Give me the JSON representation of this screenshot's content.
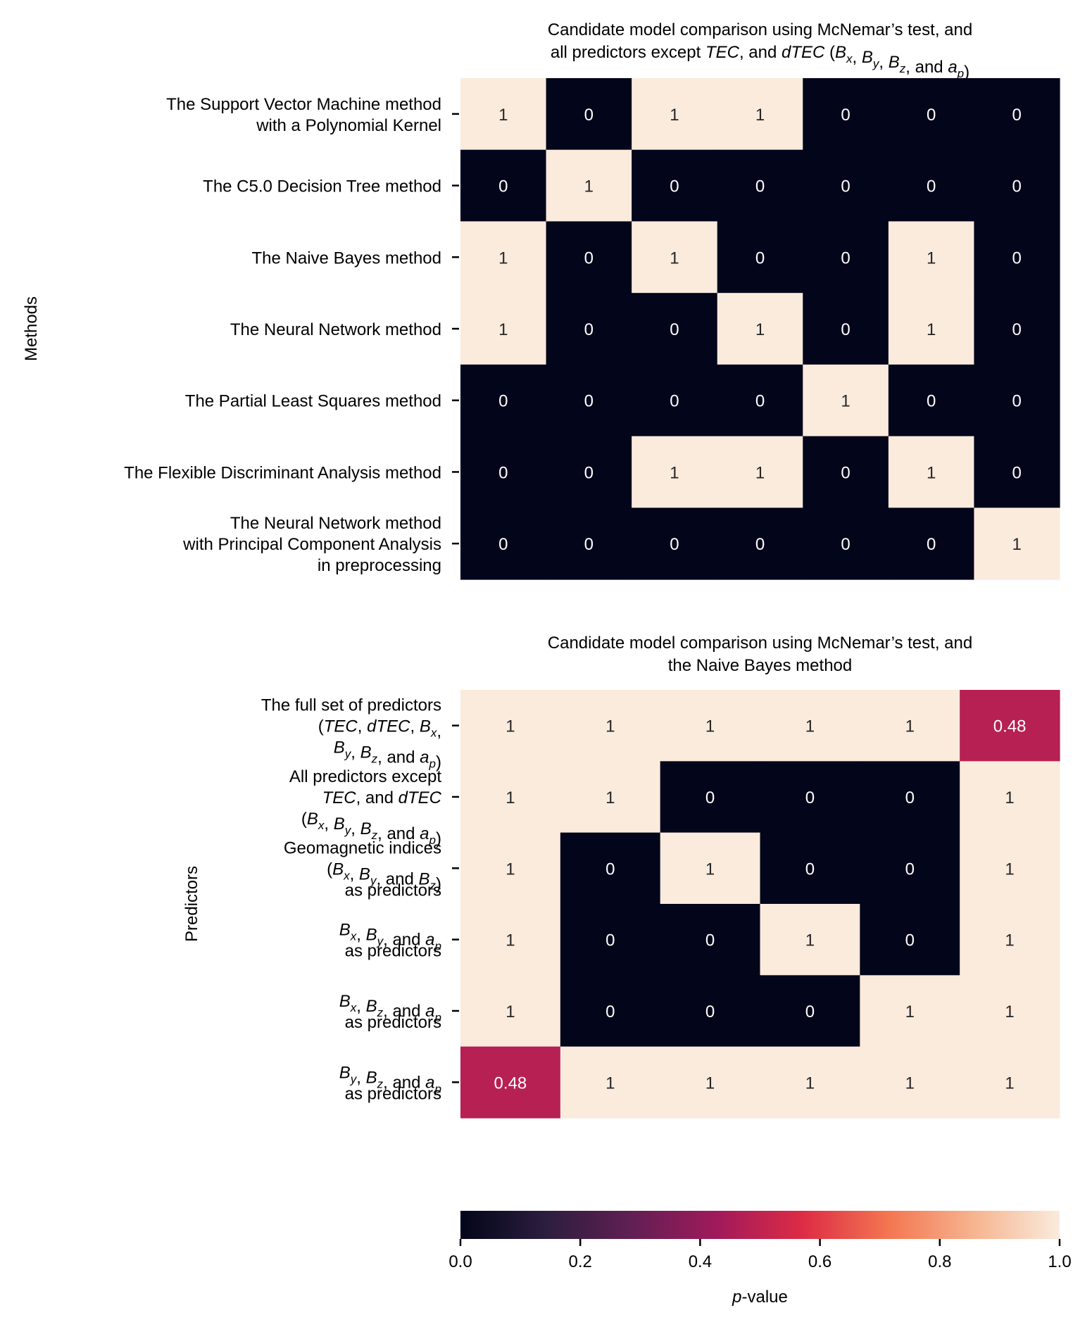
{
  "chart_data": [
    {
      "type": "heatmap",
      "title_lines": [
        "Candidate model comparison using McNemar’s test, and",
        "all predictors except TEC, and dTEC (B_x, B_y, B_z, and a_p)"
      ],
      "ylabel": "Methods",
      "row_labels": [
        [
          "The Support Vector Machine method",
          "with a Polynomial Kernel"
        ],
        [
          "The C5.0 Decision Tree method"
        ],
        [
          "The Naive Bayes method"
        ],
        [
          "The Neural Network method"
        ],
        [
          "The Partial Least Squares method"
        ],
        [
          "The Flexible Discriminant Analysis method"
        ],
        [
          "The Neural Network method",
          "with Principal Component Analysis",
          "in preprocessing"
        ]
      ],
      "matrix": [
        [
          1,
          0,
          1,
          1,
          0,
          0,
          0
        ],
        [
          0,
          1,
          0,
          0,
          0,
          0,
          0
        ],
        [
          1,
          0,
          1,
          0,
          0,
          1,
          0
        ],
        [
          1,
          0,
          0,
          1,
          0,
          1,
          0
        ],
        [
          0,
          0,
          0,
          0,
          1,
          0,
          0
        ],
        [
          0,
          0,
          1,
          1,
          0,
          1,
          0
        ],
        [
          0,
          0,
          0,
          0,
          0,
          0,
          1
        ]
      ],
      "annotations": [
        [
          "1",
          "0",
          "1",
          "1",
          "0",
          "0",
          "0"
        ],
        [
          "0",
          "1",
          "0",
          "0",
          "0",
          "0",
          "0"
        ],
        [
          "1",
          "0",
          "1",
          "0",
          "0",
          "1",
          "0"
        ],
        [
          "1",
          "0",
          "0",
          "1",
          "0",
          "1",
          "0"
        ],
        [
          "0",
          "0",
          "0",
          "0",
          "1",
          "0",
          "0"
        ],
        [
          "0",
          "0",
          "1",
          "1",
          "0",
          "1",
          "0"
        ],
        [
          "0",
          "0",
          "0",
          "0",
          "0",
          "0",
          "1"
        ]
      ]
    },
    {
      "type": "heatmap",
      "title_lines": [
        "Candidate model comparison using McNemar’s test, and",
        "the Naive Bayes method"
      ],
      "ylabel": "Predictors",
      "row_labels": [
        [
          "The full set of predictors",
          "(TEC, dTEC, B_x,",
          "B_y, B_z, and a_p)"
        ],
        [
          "All predictors except",
          "TEC, and dTEC",
          "(B_x, B_y, B_z, and a_p)"
        ],
        [
          "Geomagnetic indices",
          "(B_x, B_y, and B_z)",
          "as predictors"
        ],
        [
          "B_x, B_y, and a_p",
          "as predictors"
        ],
        [
          "B_x, B_z, and a_p",
          "as predictors"
        ],
        [
          "B_y, B_z, and a_p",
          "as predictors"
        ]
      ],
      "matrix": [
        [
          1,
          1,
          1,
          1,
          1,
          0.48
        ],
        [
          1,
          1,
          0,
          0,
          0,
          1
        ],
        [
          1,
          0,
          1,
          0,
          0,
          1
        ],
        [
          1,
          0,
          0,
          1,
          0,
          1
        ],
        [
          1,
          0,
          0,
          0,
          1,
          1
        ],
        [
          0.48,
          1,
          1,
          1,
          1,
          1
        ]
      ],
      "annotations": [
        [
          "1",
          "1",
          "1",
          "1",
          "1",
          "0.48"
        ],
        [
          "1",
          "1",
          "0",
          "0",
          "0",
          "1"
        ],
        [
          "1",
          "0",
          "1",
          "0",
          "0",
          "1"
        ],
        [
          "1",
          "0",
          "0",
          "1",
          "0",
          "1"
        ],
        [
          "1",
          "0",
          "0",
          "0",
          "1",
          "1"
        ],
        [
          "0.48",
          "1",
          "1",
          "1",
          "1",
          "1"
        ]
      ]
    }
  ],
  "colorbar": {
    "label": "p-value",
    "vmin": 0.0,
    "vmax": 1.0,
    "ticks": [
      0.0,
      0.2,
      0.4,
      0.6,
      0.8,
      1.0
    ],
    "tick_labels": [
      "0.0",
      "0.2",
      "0.4",
      "0.6",
      "0.8",
      "1.0"
    ],
    "colormap_stops": [
      "#03051a",
      "#2c1e3e",
      "#611f53",
      "#a11a5b",
      "#dd2c45",
      "#f37651",
      "#f6b48f",
      "#faebdd"
    ]
  }
}
